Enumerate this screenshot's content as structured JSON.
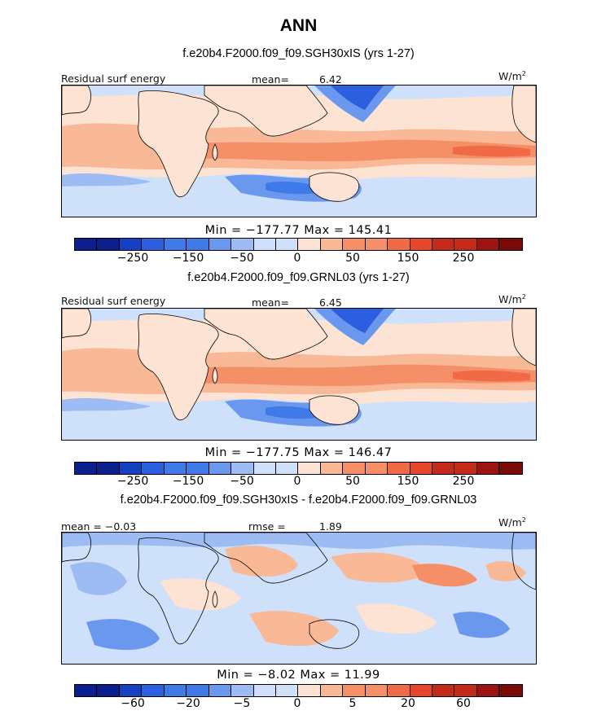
{
  "page_title": "ANN",
  "colorbar_colors": [
    "#0d1f8c",
    "#1540c2",
    "#2b5fe0",
    "#3f7ae8",
    "#6a98ee",
    "#9dbcf3",
    "#cfe1fa",
    "#fde3d3",
    "#f9b896",
    "#f58f67",
    "#ef6a45",
    "#e5462c",
    "#c42a1a",
    "#9c1411",
    "#7a0a08"
  ],
  "chart_data": [
    {
      "type": "heatmap",
      "title": "f.e20b4.F2000.f09_f09.SGH30xIS (yrs 1-27)",
      "left_label": "Residual surf energy",
      "mean_label": "mean=",
      "mean_value": "6.42",
      "units_base": "W/m",
      "units_exp": "2",
      "min_max": "Min = −177.77 Max = 145.41",
      "min": -177.77,
      "max": 145.41,
      "mean": 6.42,
      "colorbar_ticks": [
        "−250",
        "−150",
        "−50",
        "0",
        "50",
        "150",
        "250"
      ]
    },
    {
      "type": "heatmap",
      "title": "f.e20b4.F2000.f09_f09.GRNL03 (yrs 1-27)",
      "left_label": "Residual surf energy",
      "mean_label": "mean=",
      "mean_value": "6.45",
      "units_base": "W/m",
      "units_exp": "2",
      "min_max": "Min = −177.75 Max = 146.47",
      "min": -177.75,
      "max": 146.47,
      "mean": 6.45,
      "colorbar_ticks": [
        "−250",
        "−150",
        "−50",
        "0",
        "50",
        "150",
        "250"
      ]
    },
    {
      "type": "heatmap",
      "title": "f.e20b4.F2000.f09_f09.SGH30xIS - f.e20b4.F2000.f09_f09.GRNL03",
      "left_label": "mean = −0.03",
      "mean_label": "rmse =",
      "mean_value": "1.89",
      "units_base": "W/m",
      "units_exp": "2",
      "min_max": "Min = −8.02 Max = 11.99",
      "min": -8.02,
      "max": 11.99,
      "mean": -0.03,
      "rmse": 1.89,
      "colorbar_ticks": [
        "−60",
        "−20",
        "−5",
        "0",
        "5",
        "20",
        "60"
      ]
    }
  ]
}
